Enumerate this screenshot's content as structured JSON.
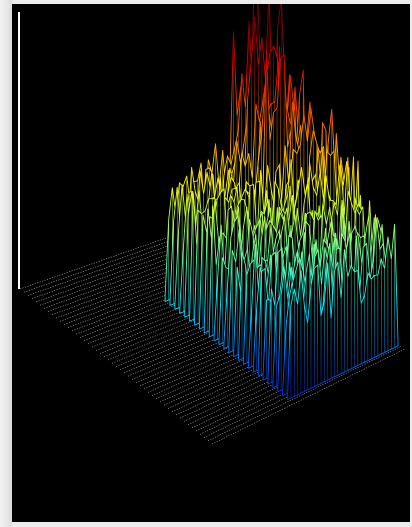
{
  "window": {
    "background": "#000000",
    "frame_color": "#ececec"
  },
  "plot": {
    "type": "3d-waterfall",
    "grid": true,
    "colormap": "jet",
    "colors": {
      "low": "#0000c8",
      "mid_low": "#00a0ff",
      "mid": "#00ff80",
      "mid_high": "#ffff00",
      "high": "#ff0000",
      "floor_grid": "#e6e6e6"
    }
  }
}
